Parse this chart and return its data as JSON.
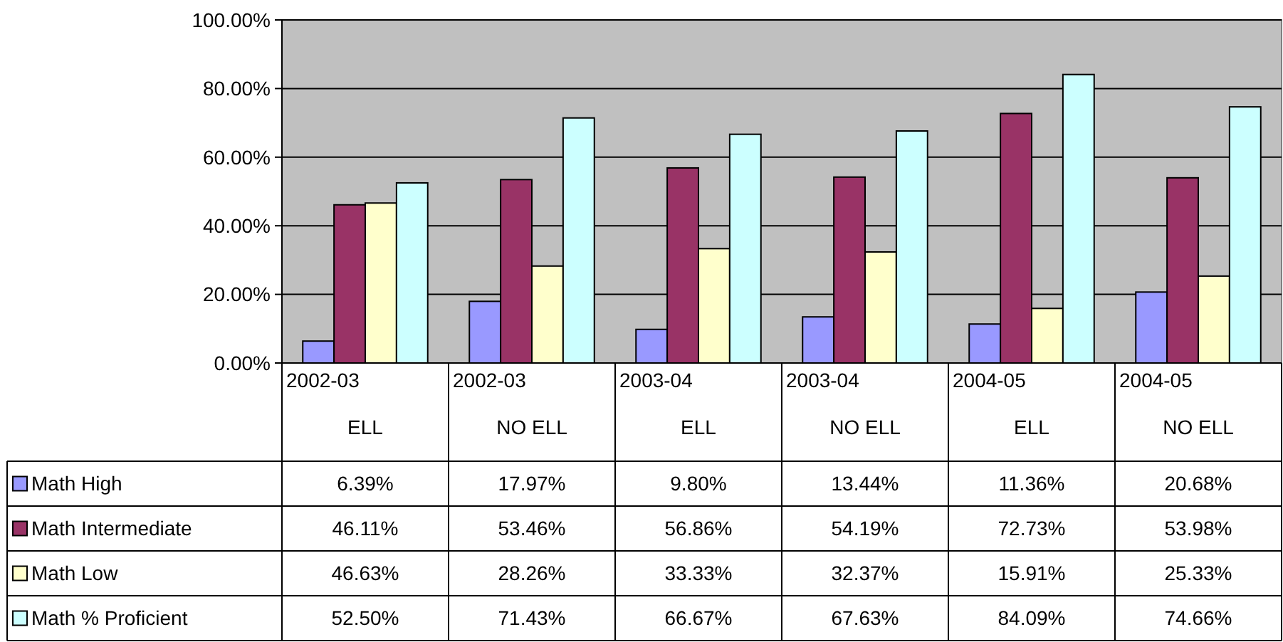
{
  "chart_data": {
    "type": "bar",
    "categories": [
      "2002-03\nELL",
      "2002-03\nNO ELL",
      "2003-04\nELL",
      "2003-04\nNO ELL",
      "2004-05\nELL",
      "2004-05\nNO ELL"
    ],
    "series": [
      {
        "name": "Math High",
        "color": "#9999ff",
        "values": [
          6.39,
          17.97,
          9.8,
          13.44,
          11.36,
          20.68
        ],
        "value_labels": [
          "6.39%",
          "17.97%",
          "9.80%",
          "13.44%",
          "11.36%",
          "20.68%"
        ]
      },
      {
        "name": "Math Intermediate",
        "color": "#993366",
        "values": [
          46.11,
          53.46,
          56.86,
          54.19,
          72.73,
          53.98
        ],
        "value_labels": [
          "46.11%",
          "53.46%",
          "56.86%",
          "54.19%",
          "72.73%",
          "53.98%"
        ]
      },
      {
        "name": "Math Low",
        "color": "#ffffcc",
        "values": [
          46.63,
          28.26,
          33.33,
          32.37,
          15.91,
          25.33
        ],
        "value_labels": [
          "46.63%",
          "28.26%",
          "33.33%",
          "32.37%",
          "15.91%",
          "25.33%"
        ]
      },
      {
        "name": "Math % Proficient",
        "color": "#ccffff",
        "values": [
          52.5,
          71.43,
          66.67,
          67.63,
          84.09,
          74.66
        ],
        "value_labels": [
          "52.50%",
          "71.43%",
          "66.67%",
          "67.63%",
          "84.09%",
          "74.66%"
        ]
      }
    ],
    "ylim": [
      0,
      100
    ],
    "yticks": [
      {
        "value": 0,
        "label": "0.00%"
      },
      {
        "value": 20,
        "label": "20.00%"
      },
      {
        "value": 40,
        "label": "40.00%"
      },
      {
        "value": 60,
        "label": "60.00%"
      },
      {
        "value": 80,
        "label": "80.00%"
      },
      {
        "value": 100,
        "label": "100.00%"
      }
    ],
    "grid": "y",
    "legend": "bottom"
  }
}
